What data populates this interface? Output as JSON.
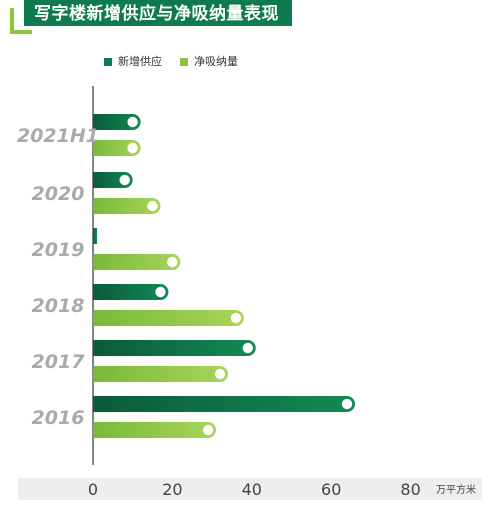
{
  "title": "写字楼新增供应与净吸纳量表现",
  "colors": {
    "supply": "#0e7a4e",
    "supply_dark": "#0b5a3a",
    "absorption": "#8cc63f",
    "absorption_light": "#a8d45a",
    "axis_band": "#eeeeee",
    "year_text": "#aaaaaa"
  },
  "chart_data": {
    "type": "bar",
    "orientation": "horizontal",
    "categories": [
      "2021H1",
      "2020",
      "2019",
      "2018",
      "2017",
      "2016"
    ],
    "series": [
      {
        "name": "新增供应",
        "values": [
          12,
          10,
          0.5,
          19,
          41,
          66
        ]
      },
      {
        "name": "净吸纳量",
        "values": [
          12,
          17,
          22,
          38,
          34,
          31
        ]
      }
    ],
    "xlim": [
      0,
      80
    ],
    "xticks": [
      "0",
      "20",
      "40",
      "60",
      "80"
    ],
    "unit": "万平方米",
    "legend_position": "top"
  }
}
